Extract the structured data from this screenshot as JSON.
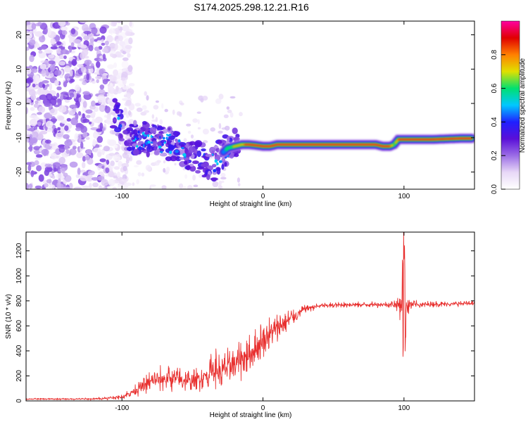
{
  "figure_title": "S174.2025.298.12.21.R16",
  "colors": {
    "line": "#e8302f",
    "axis": "#000000",
    "spectrogram_cmap": [
      "#ffffff",
      "#e8d8f7",
      "#9b6de6",
      "#5a0fd8",
      "#2020ff",
      "#00c8ff",
      "#00e070",
      "#e0e000",
      "#ff8000",
      "#e00000",
      "#ff00a0"
    ]
  },
  "chart_data": [
    {
      "type": "heatmap",
      "title": "S174.2025.298.12.21.R16",
      "xlabel": "Height of straight line (km)",
      "ylabel": "Frequency (Hz)",
      "xlim": [
        -168,
        150
      ],
      "ylim": [
        -25,
        24
      ],
      "xticks": [
        -100,
        0,
        100
      ],
      "yticks": [
        -20,
        -10,
        0,
        10,
        20
      ],
      "colorbar": {
        "label": "Normalized spectral amplitude",
        "range": [
          0,
          1
        ],
        "ticks": [
          "0.0",
          "0.2",
          "0.4",
          "0.6",
          "0.8"
        ]
      },
      "ridge_track": {
        "x": [
          -105,
          -95,
          -85,
          -75,
          -65,
          -55,
          -45,
          -35,
          -30,
          -25,
          -20,
          -15,
          -10,
          -5,
          0,
          5,
          10,
          20,
          40,
          60,
          80,
          85,
          90,
          93,
          96,
          100,
          120,
          140,
          148
        ],
        "freq": [
          -3,
          -10,
          -10,
          -11,
          -12,
          -14,
          -16,
          -18,
          -15,
          -13,
          -12.5,
          -12,
          -12,
          -12.2,
          -12.5,
          -12.5,
          -12,
          -12,
          -12,
          -12,
          -12,
          -12.5,
          -12.5,
          -12,
          -10.5,
          -10.5,
          -10.5,
          -10.2,
          -10.2
        ],
        "amplitude": [
          0.3,
          0.2,
          0.25,
          0.25,
          0.25,
          0.25,
          0.3,
          0.35,
          0.4,
          0.6,
          0.7,
          0.8,
          0.9,
          0.9,
          0.95,
          0.95,
          1.0,
          1.0,
          1.0,
          1.0,
          1.0,
          1.0,
          0.9,
          0.6,
          0.9,
          1.0,
          1.0,
          1.0,
          1.0
        ]
      }
    },
    {
      "type": "line",
      "xlabel": "Height of straight line (km)",
      "ylabel": "SNR (10 * v/v)",
      "xlim": [
        -168,
        150
      ],
      "ylim": [
        0,
        1350
      ],
      "xticks": [
        -100,
        0,
        100
      ],
      "yticks": [
        0,
        200,
        400,
        600,
        800,
        1000,
        1200
      ],
      "series": [
        {
          "name": "SNR",
          "x": [
            -168,
            -140,
            -120,
            -100,
            -90,
            -80,
            -70,
            -60,
            -50,
            -40,
            -35,
            -30,
            -25,
            -20,
            -15,
            -10,
            -5,
            0,
            5,
            10,
            15,
            20,
            25,
            30,
            40,
            60,
            80,
            90,
            95,
            98,
            100,
            102,
            105,
            110,
            130,
            150
          ],
          "mean": [
            15,
            15,
            15,
            30,
            90,
            150,
            180,
            170,
            160,
            200,
            250,
            230,
            270,
            300,
            340,
            360,
            420,
            480,
            540,
            580,
            620,
            660,
            700,
            740,
            760,
            770,
            770,
            770,
            770,
            770,
            770,
            770,
            770,
            770,
            775,
            780
          ],
          "amp": [
            8,
            8,
            10,
            20,
            60,
            100,
            120,
            110,
            100,
            150,
            200,
            180,
            200,
            200,
            180,
            170,
            180,
            180,
            160,
            140,
            120,
            90,
            60,
            40,
            25,
            25,
            25,
            30,
            60,
            150,
            600,
            150,
            60,
            30,
            25,
            25
          ]
        }
      ]
    }
  ]
}
